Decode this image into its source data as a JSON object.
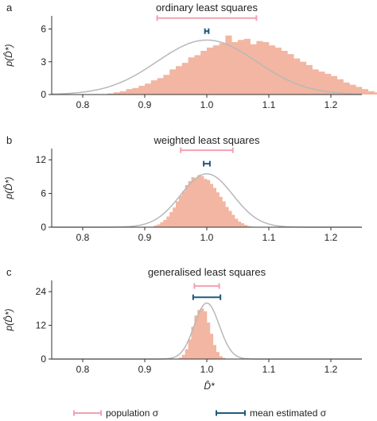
{
  "chart_data": [
    {
      "type": "bar",
      "panel_letter": "a",
      "title": "ordinary least squares",
      "ylabel": "p(D̂*)",
      "xlim": [
        0.75,
        1.25
      ],
      "ylim": [
        0,
        7.2
      ],
      "xticks": [
        0.8,
        0.9,
        1.0,
        1.1,
        1.2
      ],
      "xtick_labels": [
        "0.8",
        "0.9",
        "1.0",
        "1.1",
        "1.2"
      ],
      "yticks": [
        0,
        3,
        6
      ],
      "ytick_labels": [
        "0",
        "3",
        "6"
      ],
      "bin_width": 0.01,
      "bins_start": 0.84,
      "values": [
        0.1,
        0.2,
        0.3,
        0.5,
        0.6,
        0.8,
        1.0,
        1.3,
        1.5,
        1.8,
        2.3,
        2.6,
        2.9,
        3.4,
        3.6,
        4.0,
        4.3,
        4.5,
        4.7,
        5.4,
        4.8,
        5.0,
        5.1,
        4.6,
        4.9,
        4.8,
        4.5,
        4.3,
        4.0,
        3.7,
        3.3,
        3.0,
        2.7,
        2.3,
        2.1,
        1.9,
        1.7,
        1.4,
        1.1,
        0.9,
        0.7,
        0.5,
        0.3,
        0.2,
        0.1
      ],
      "fit": {
        "type": "gaussian",
        "mean": 1.0,
        "sd": 0.08
      },
      "population_sigma": [
        0.92,
        1.08
      ],
      "mean_estimated_sigma": [
        0.997,
        1.003
      ],
      "population_y": 7.0,
      "estimated_y": 5.8
    },
    {
      "type": "bar",
      "panel_letter": "b",
      "title": "weighted least squares",
      "ylabel": "p(D̂*)",
      "xlim": [
        0.75,
        1.25
      ],
      "ylim": [
        0,
        14
      ],
      "xticks": [
        0.8,
        0.9,
        1.0,
        1.1,
        1.2
      ],
      "xtick_labels": [
        "0.8",
        "0.9",
        "1.0",
        "1.1",
        "1.2"
      ],
      "yticks": [
        0,
        6,
        12
      ],
      "ytick_labels": [
        "0",
        "6",
        "12"
      ],
      "bin_width": 0.005,
      "bins_start": 0.91,
      "values": [
        0.1,
        0.3,
        0.5,
        0.9,
        1.3,
        1.9,
        2.7,
        3.5,
        4.6,
        5.6,
        6.4,
        7.5,
        8.2,
        8.9,
        8.7,
        9.3,
        9.1,
        8.6,
        8.4,
        7.7,
        7.0,
        6.2,
        5.4,
        4.6,
        3.6,
        2.9,
        2.2,
        1.5,
        1.0,
        0.7,
        0.4,
        0.2,
        0.1
      ],
      "fit": {
        "type": "gaussian",
        "mean": 1.0,
        "sd": 0.042
      },
      "population_sigma": [
        0.958,
        1.042
      ],
      "mean_estimated_sigma": [
        0.995,
        1.005
      ],
      "population_y": 13.7,
      "estimated_y": 11.3
    },
    {
      "type": "bar",
      "panel_letter": "c",
      "title": "generalised least squares",
      "ylabel": "p(D̂*)",
      "xlabel": "D̂*",
      "xlim": [
        0.75,
        1.25
      ],
      "ylim": [
        0,
        28
      ],
      "xticks": [
        0.8,
        0.9,
        1.0,
        1.1,
        1.2
      ],
      "xtick_labels": [
        "0.8",
        "0.9",
        "1.0",
        "1.1",
        "1.2"
      ],
      "yticks": [
        0,
        12,
        24
      ],
      "ytick_labels": [
        "0",
        "12",
        "24"
      ],
      "bin_width": 0.005,
      "bins_start": 0.955,
      "values": [
        0.5,
        1.5,
        3.5,
        7.0,
        11.5,
        15.5,
        17.5,
        18.0,
        17.0,
        13.0,
        9.0,
        5.0,
        2.5,
        1.0,
        0.4,
        0.1
      ],
      "fit": {
        "type": "gaussian",
        "mean": 1.0,
        "sd": 0.02
      },
      "population_sigma": [
        0.98,
        1.02
      ],
      "mean_estimated_sigma": [
        0.978,
        1.022
      ],
      "population_y": 26.0,
      "estimated_y": 22.0
    }
  ],
  "legend": [
    {
      "label": "population σ",
      "color": "#f4a0b4"
    },
    {
      "label": "mean estimated σ",
      "color": "#1f5a80"
    }
  ],
  "colors": {
    "bars": "#f2b6a2",
    "fit": "#b8b8b8",
    "population": "#f4a0b4",
    "estimated": "#1f5a80",
    "axis": "#333333"
  }
}
